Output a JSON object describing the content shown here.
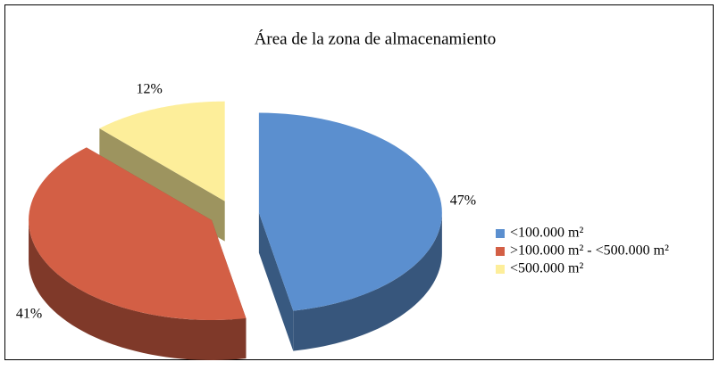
{
  "chart_data": {
    "type": "pie3d",
    "title": "Área de la zona de almacenamiento",
    "categories": [
      "<100.000 m²",
      ">100.000 m² - <500.000 m²",
      "<500.000 m²"
    ],
    "values": [
      47,
      41,
      12
    ],
    "value_labels": [
      "47%",
      "41%",
      "12%"
    ],
    "colors": [
      "#5b8fcf",
      "#d35f45",
      "#fdee9a"
    ],
    "legend": "right"
  }
}
